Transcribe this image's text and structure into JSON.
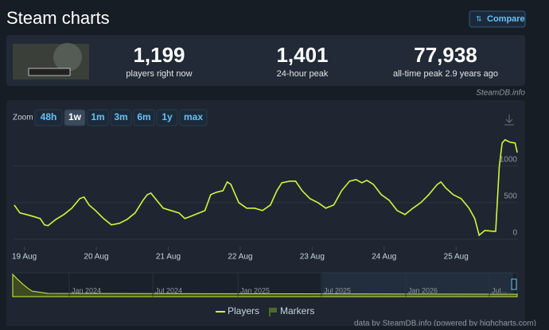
{
  "header": {
    "title": "Steam charts",
    "compare": "Compare"
  },
  "stats": [
    {
      "value": "1,199",
      "label": "players right now"
    },
    {
      "value": "1,401",
      "label": "24-hour peak"
    },
    {
      "value": "77,938",
      "label": "all-time peak 2.9 years ago"
    }
  ],
  "source": "SteamDB.info",
  "zoom": {
    "label": "Zoom",
    "buttons": [
      "48h",
      "1w",
      "1m",
      "3m",
      "6m",
      "1y",
      "max"
    ],
    "active": 1
  },
  "chart_data": {
    "type": "line",
    "color": "#d4f53c",
    "grid": true,
    "x": [
      -0.14,
      -0.06,
      0.03,
      0.11,
      0.22,
      0.28,
      0.33,
      0.44,
      0.55,
      0.66,
      0.77,
      0.83,
      0.9,
      0.99,
      1.1,
      1.21,
      1.32,
      1.43,
      1.54,
      1.65,
      1.71,
      1.76,
      1.82,
      1.93,
      2.04,
      2.15,
      2.23,
      2.32,
      2.43,
      2.51,
      2.59,
      2.67,
      2.76,
      2.82,
      2.87,
      2.98,
      3.09,
      3.2,
      3.31,
      3.42,
      3.51,
      3.58,
      3.69,
      3.77,
      3.86,
      3.97,
      4.08,
      4.19,
      4.3,
      4.41,
      4.52,
      4.61,
      4.69,
      4.76,
      4.85,
      4.96,
      5.07,
      5.18,
      5.29,
      5.4,
      5.51,
      5.62,
      5.74,
      5.79,
      5.85,
      5.96,
      6.07,
      6.18,
      6.26,
      6.32,
      6.4,
      6.51,
      6.55,
      6.6,
      6.64,
      6.68,
      6.75,
      6.82,
      6.85
    ],
    "series": [
      {
        "name": "Players",
        "color": "#d4f53c",
        "values": [
          467,
          359,
          337,
          315,
          283,
          196,
          185,
          272,
          337,
          424,
          554,
          576,
          467,
          391,
          283,
          196,
          217,
          272,
          359,
          533,
          609,
          630,
          554,
          424,
          391,
          359,
          283,
          315,
          359,
          391,
          609,
          641,
          663,
          783,
          750,
          500,
          424,
          424,
          391,
          467,
          663,
          772,
          793,
          793,
          663,
          554,
          500,
          424,
          467,
          663,
          793,
          815,
          772,
          804,
          750,
          609,
          533,
          391,
          337,
          424,
          500,
          609,
          750,
          783,
          707,
          609,
          554,
          424,
          283,
          54,
          120,
          109,
          109,
          989,
          1315,
          1359,
          1326,
          1315,
          1185
        ]
      }
    ],
    "xlim": [
      -0.15,
      6.86
    ],
    "ylim": [
      -100,
      1400
    ],
    "yticks": [
      0,
      500,
      1000
    ],
    "xticks": [
      {
        "value": 0,
        "label": "19 Aug"
      },
      {
        "value": 1,
        "label": "20 Aug"
      },
      {
        "value": 2,
        "label": "21 Aug"
      },
      {
        "value": 3,
        "label": "22 Aug"
      },
      {
        "value": 4,
        "label": "23 Aug"
      },
      {
        "value": 5,
        "label": "24 Aug"
      },
      {
        "value": 6,
        "label": "25 Aug"
      }
    ],
    "legend": [
      "Players",
      "Markers"
    ]
  },
  "navigator": [
    "Jan 2024",
    "Jul 2024",
    "Jan 2025",
    "Jul 2025",
    "Jan 2026",
    "Jul..."
  ],
  "credits": "data by SteamDB.info (powered by highcharts.com)"
}
